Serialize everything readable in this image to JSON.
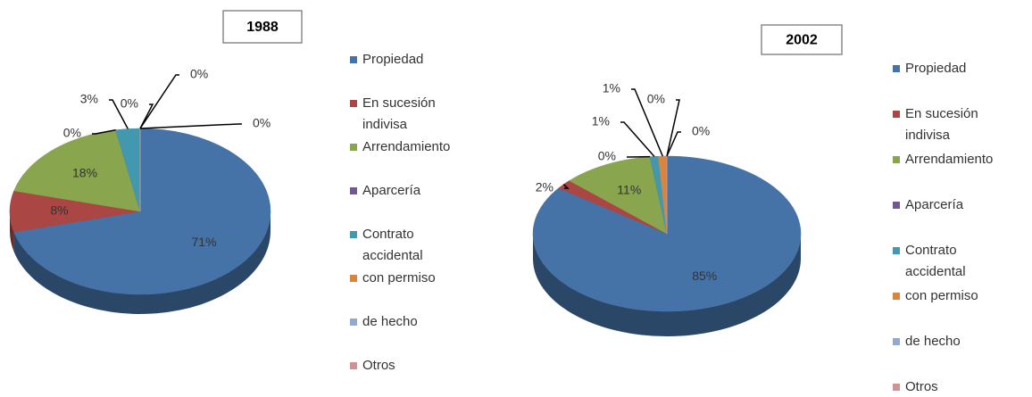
{
  "chart_data": [
    {
      "type": "pie",
      "title": "1988",
      "categories": [
        "Propiedad",
        "En sucesión indivisa",
        "Arrendamiento",
        "Aparcería",
        "Contrato accidental",
        "con permiso",
        "de hecho",
        "Otros"
      ],
      "values": [
        71,
        8,
        18,
        0,
        3,
        0,
        0,
        0
      ],
      "value_labels": [
        "71%",
        "8%",
        "18%",
        "0%",
        "3%",
        "0%",
        "0%",
        "0%"
      ],
      "colors": [
        "#4572a7",
        "#aa4643",
        "#89a54e",
        "#71588f",
        "#4198af",
        "#db843d",
        "#93a9cf",
        "#d19392"
      ]
    },
    {
      "type": "pie",
      "title": "2002",
      "categories": [
        "Propiedad",
        "En sucesión indivisa",
        "Arrendamiento",
        "Aparcería",
        "Contrato accidental",
        "con permiso",
        "de hecho",
        "Otros"
      ],
      "values": [
        85,
        2,
        11,
        0,
        1,
        1,
        0,
        0
      ],
      "value_labels": [
        "85%",
        "2%",
        "11%",
        "0%",
        "1%",
        "1%",
        "0%",
        "0%"
      ],
      "colors": [
        "#4572a7",
        "#aa4643",
        "#89a54e",
        "#71588f",
        "#4198af",
        "#db843d",
        "#93a9cf",
        "#d19392"
      ]
    }
  ]
}
